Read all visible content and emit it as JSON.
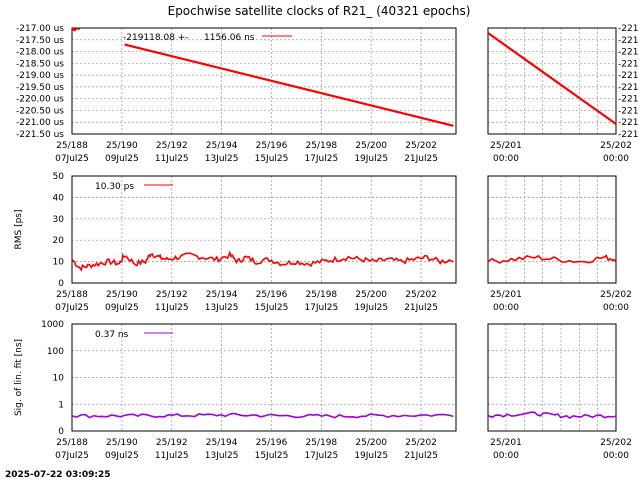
{
  "title": "Epochwise satellite clocks of R21_ (40321 epochs)",
  "timestamp": "2025-07-22 03:09:25",
  "colors": {
    "clock": "#ff0000",
    "rms": "#ff0000",
    "sig": "#a000e0"
  },
  "chart_data": [
    {
      "type": "line",
      "panel": "clock-main",
      "ylabel": "",
      "yticks": [
        "-217.00 us",
        "-217.50 us",
        "-218.00 us",
        "-218.50 us",
        "-219.00 us",
        "-219.50 us",
        "-220.00 us",
        "-220.50 us",
        "-221.00 us",
        "-221.50 us"
      ],
      "ylim": [
        -221.5,
        -217.0
      ],
      "xticks": [
        [
          "25/188",
          "07Jul25"
        ],
        [
          "25/190",
          "09Jul25"
        ],
        [
          "25/192",
          "11Jul25"
        ],
        [
          "25/194",
          "13Jul25"
        ],
        [
          "25/196",
          "15Jul25"
        ],
        [
          "25/198",
          "17Jul25"
        ],
        [
          "25/200",
          "19Jul25"
        ],
        [
          "25/202",
          "21Jul25"
        ]
      ],
      "xlim": [
        188,
        202.6
      ],
      "legend": {
        "label": "-219118.08 +-",
        "value": "1156.06 ns"
      },
      "series": [
        {
          "x": [
            188,
            188.15,
            190,
            202.5
          ],
          "y": [
            -217.05,
            -217.08,
            -217.7,
            -221.15
          ]
        }
      ]
    },
    {
      "type": "line",
      "panel": "clock-zoom",
      "yticks": [
        "-221",
        "-221",
        "-221",
        "-221",
        "-221",
        "-221",
        "-221",
        "-221",
        "-221",
        "-221"
      ],
      "xticks": [
        [
          "25/201",
          "00:00"
        ],
        [
          "25/202",
          "00:00"
        ]
      ],
      "series": [
        {
          "x": [
            200.9,
            202.0
          ],
          "y": [
            -217.05,
            -221.15
          ]
        }
      ]
    },
    {
      "type": "line",
      "panel": "rms-main",
      "ylabel": "RMS [ps]",
      "yticks": [
        "50",
        "40",
        "30",
        "20",
        "10",
        "0"
      ],
      "ylim": [
        0,
        50
      ],
      "xticks": [
        [
          "25/188",
          "07Jul25"
        ],
        [
          "25/190",
          "09Jul25"
        ],
        [
          "25/192",
          "11Jul25"
        ],
        [
          "25/194",
          "13Jul25"
        ],
        [
          "25/196",
          "15Jul25"
        ],
        [
          "25/198",
          "17Jul25"
        ],
        [
          "25/200",
          "19Jul25"
        ],
        [
          "25/202",
          "21Jul25"
        ]
      ],
      "xlim": [
        188,
        202.6
      ],
      "legend": {
        "label": "10.30 ps"
      },
      "series": [
        {
          "x": [
            188,
            188.3,
            188.6,
            189,
            189.4,
            189.8,
            190,
            190.4,
            190.8,
            191,
            191.3,
            191.6,
            192,
            192.5,
            193,
            193.5,
            194,
            194.3,
            194.6,
            195,
            195.5,
            196,
            196.5,
            197,
            197.5,
            198,
            198.5,
            199,
            199.5,
            200,
            200.5,
            201,
            201.5,
            202,
            202.5
          ],
          "y": [
            11,
            7,
            8,
            9,
            10,
            9,
            13,
            9,
            10,
            14,
            12,
            11,
            12,
            13,
            12,
            11,
            13,
            10,
            12,
            10,
            11,
            9,
            10,
            9,
            10,
            11,
            12,
            11,
            10,
            11,
            10,
            11,
            12,
            10,
            11
          ]
        }
      ]
    },
    {
      "type": "line",
      "panel": "rms-zoom",
      "yticks": [],
      "xticks": [
        [
          "25/201",
          "00:00"
        ],
        [
          "25/202",
          "00:00"
        ]
      ],
      "series": [
        {
          "x": [
            200.9,
            201.1,
            201.3,
            201.5,
            201.7,
            201.9,
            202.0
          ],
          "y": [
            10,
            11,
            12,
            11,
            10,
            12,
            11
          ]
        }
      ]
    },
    {
      "type": "line",
      "panel": "sig-main",
      "ylabel": "Sig. of lin. fit [ns]",
      "yticks": [
        "1000",
        "100",
        "10",
        "1",
        "0"
      ],
      "xticks": [
        [
          "25/188",
          "07Jul25"
        ],
        [
          "25/190",
          "09Jul25"
        ],
        [
          "25/192",
          "11Jul25"
        ],
        [
          "25/194",
          "13Jul25"
        ],
        [
          "25/196",
          "15Jul25"
        ],
        [
          "25/198",
          "17Jul25"
        ],
        [
          "25/200",
          "19Jul25"
        ],
        [
          "25/202",
          "21Jul25"
        ]
      ],
      "xlim": [
        188,
        202.6
      ],
      "legend": {
        "label": "0.37 ns"
      },
      "series": [
        {
          "x": [
            188,
            190,
            192,
            194,
            196,
            198,
            200,
            202.5
          ],
          "y": [
            0.37,
            0.37,
            0.38,
            0.4,
            0.37,
            0.36,
            0.38,
            0.4
          ]
        }
      ]
    },
    {
      "type": "line",
      "panel": "sig-zoom",
      "yticks": [],
      "xticks": [
        [
          "25/201",
          "00:00"
        ],
        [
          "25/202",
          "00:00"
        ]
      ],
      "series": [
        {
          "x": [
            200.9,
            201.3,
            201.6,
            202.0
          ],
          "y": [
            0.38,
            0.45,
            0.35,
            0.38
          ]
        }
      ]
    }
  ]
}
